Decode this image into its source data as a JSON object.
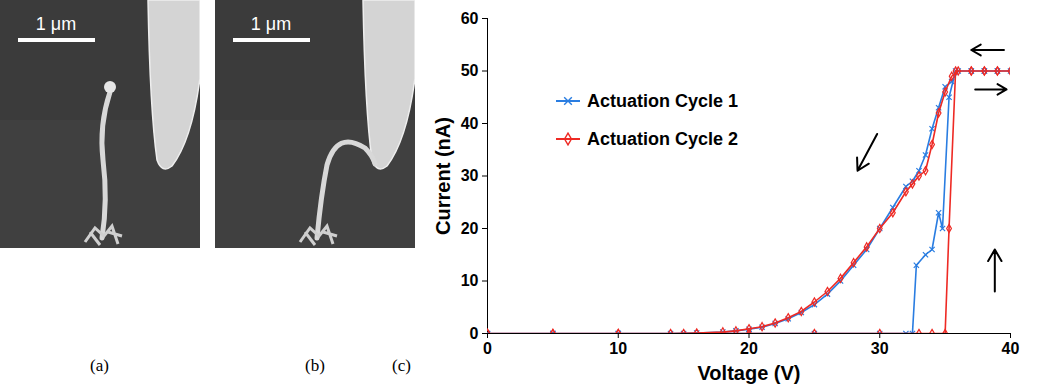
{
  "panels": [
    {
      "label": "(a)",
      "scale_bar": "1 μm"
    },
    {
      "label": "(b)",
      "scale_bar": "1 μm"
    },
    {
      "label": "(c)"
    }
  ],
  "chart_data": {
    "type": "line",
    "xlabel": "Voltage (V)",
    "ylabel": "Current (nA)",
    "xlim": [
      0,
      40
    ],
    "xticks": [
      0,
      10,
      20,
      30,
      40
    ],
    "ylim": [
      0,
      60
    ],
    "yticks": [
      0,
      10,
      20,
      30,
      40,
      50,
      60
    ],
    "grid": false,
    "legend": "left",
    "series": [
      {
        "name": "Actuation Cycle 1",
        "color": "#2a7de1",
        "marker": "times",
        "line_style": "solid",
        "x": [
          0,
          5,
          10,
          15,
          20,
          25,
          30,
          32,
          32.5,
          32.8,
          33.5,
          34,
          34.5,
          34.8,
          35.3,
          35.8,
          37,
          38,
          39,
          40,
          39,
          38,
          37,
          36,
          35.5,
          35,
          34.5,
          34,
          33.5,
          33,
          32.5,
          32,
          31,
          30,
          29,
          28,
          27,
          26,
          25,
          24,
          23,
          22,
          21,
          20,
          19,
          18,
          16,
          14,
          10,
          5,
          0
        ],
        "values": [
          0,
          0,
          0,
          0,
          0,
          0,
          0,
          0,
          0,
          13,
          15,
          16,
          23,
          20,
          45,
          50,
          50,
          50,
          50,
          50,
          50,
          50,
          50,
          50,
          48,
          47,
          43,
          39,
          34,
          31,
          29,
          28,
          24,
          20,
          16,
          13,
          10,
          7.5,
          5.5,
          4,
          2.8,
          1.9,
          1.2,
          0.8,
          0.5,
          0.3,
          0.1,
          0,
          0,
          0,
          0
        ]
      },
      {
        "name": "Actuation Cycle 2",
        "color": "#ee2a24",
        "marker": "diamond",
        "line_style": "solid",
        "x": [
          0,
          5,
          10,
          15,
          20,
          25,
          30,
          33,
          34,
          35,
          35.3,
          35.8,
          37,
          38,
          39,
          40,
          39,
          38,
          37,
          36,
          35.5,
          35,
          34.5,
          34,
          33.5,
          33,
          32.5,
          32,
          31,
          30,
          29,
          28,
          27,
          26,
          25,
          24,
          23,
          22,
          21,
          20,
          19,
          18,
          16,
          14,
          10,
          5,
          0
        ],
        "values": [
          0,
          0,
          0,
          0,
          0,
          0,
          0,
          0,
          0,
          0,
          20,
          50,
          50,
          50,
          50,
          50,
          50,
          50,
          50,
          50,
          49,
          46,
          42,
          36,
          31,
          30,
          28.5,
          27,
          23,
          20,
          16.5,
          13.5,
          10.5,
          8,
          6,
          4.2,
          3,
          2,
          1.3,
          0.9,
          0.5,
          0.3,
          0.1,
          0,
          0,
          0,
          0
        ]
      }
    ],
    "arrows": [
      {
        "x1": 39.5,
        "y1": 54,
        "x2": 37,
        "y2": 54
      },
      {
        "x1": 37.3,
        "y1": 46.5,
        "x2": 39.7,
        "y2": 46.5
      },
      {
        "x1": 38.8,
        "y1": 8,
        "x2": 38.8,
        "y2": 16
      },
      {
        "x1": 29.8,
        "y1": 38,
        "x2": 28.3,
        "y2": 31
      }
    ]
  }
}
